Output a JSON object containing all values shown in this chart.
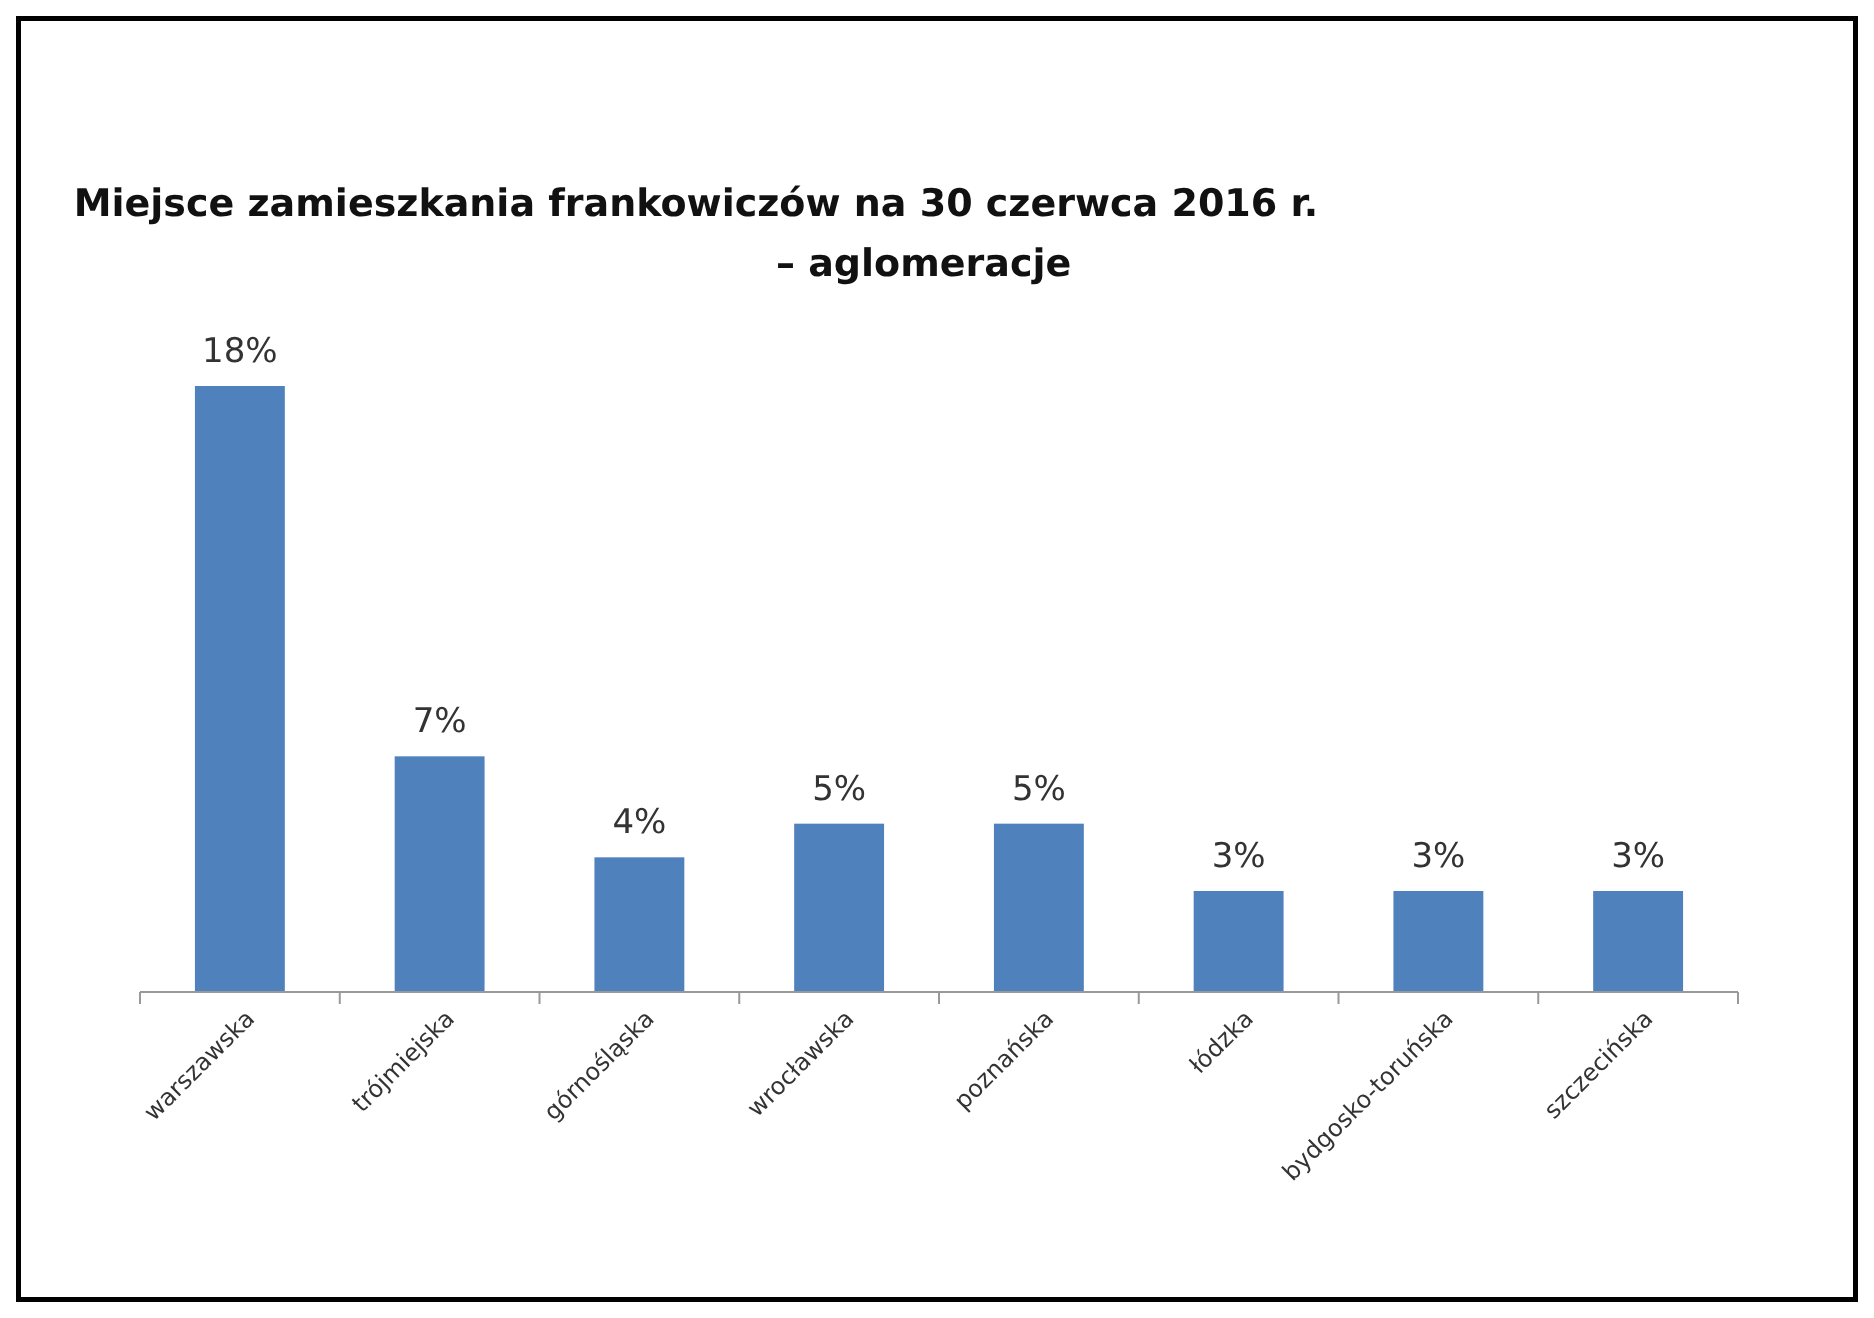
{
  "chart_data": {
    "type": "bar",
    "title": "Miejsce zamieszkania frankowiczów na 30 czerwca 2016 r.\n– aglomeracje",
    "categories": [
      "warszawska",
      "trójmiejska",
      "górnośląska",
      "wrocławska",
      "poznańska",
      "łódzka",
      "bydgosko-toruńska",
      "szczecińska"
    ],
    "values": [
      18,
      7,
      4,
      5,
      5,
      3,
      3,
      3
    ],
    "value_labels": [
      "18%",
      "7%",
      "4%",
      "5%",
      "5%",
      "3%",
      "3%",
      "3%"
    ],
    "color": "#4f81bd"
  }
}
